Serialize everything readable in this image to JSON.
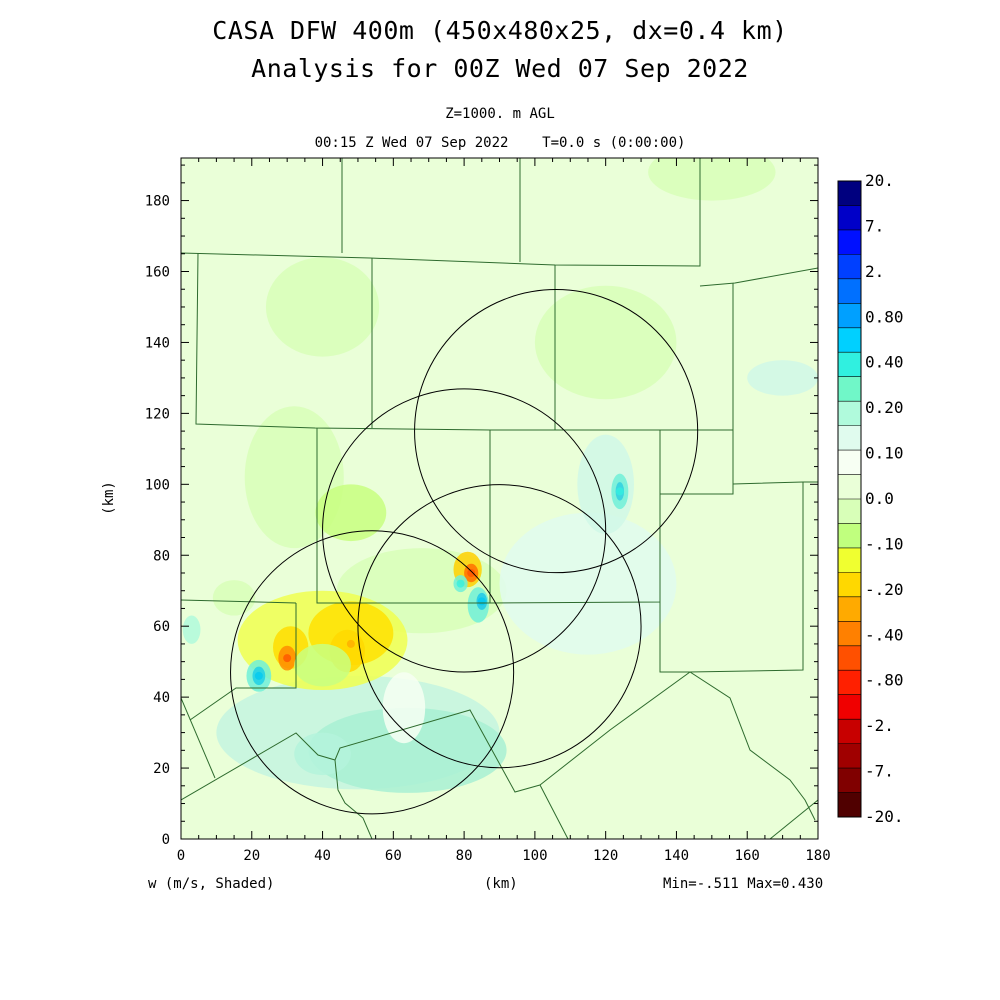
{
  "header": {
    "title_line1": "CASA DFW 400m (450x480x25, dx=0.4 km)",
    "title_line2": "Analysis for 00Z Wed 07 Sep 2022",
    "level_label": "Z=1000. m AGL",
    "time_label": "00:15 Z Wed 07 Sep 2022    T=0.0 s (0:00:00)"
  },
  "footer": {
    "field_label": "w (m/s, Shaded)",
    "x_unit": "(km)",
    "minmax": "Min=-.511 Max=0.430"
  },
  "chart_data": {
    "type": "heatmap",
    "field": "w (m/s, Shaded)",
    "xlabel": "(km)",
    "ylabel": "(km)",
    "xlim": [
      0,
      180
    ],
    "ylim": [
      0,
      192
    ],
    "x_ticks": [
      "0",
      "20",
      "40",
      "60",
      "80",
      "100",
      "120",
      "140",
      "160",
      "180"
    ],
    "y_ticks": [
      "0",
      "20",
      "40",
      "60",
      "80",
      "100",
      "120",
      "140",
      "160",
      "180"
    ],
    "colorbar": {
      "labels": [
        "20.",
        "7.",
        "2.",
        "0.80",
        "0.40",
        "0.20",
        "0.10",
        "0.0",
        "-.10",
        "-.20",
        "-.40",
        "-.80",
        "-2.",
        "-7.",
        "-20."
      ],
      "colors": [
        "#00007f",
        "#0000c8",
        "#0010ff",
        "#0040ff",
        "#0070ff",
        "#00a0ff",
        "#00d0ff",
        "#30f0e0",
        "#70f7c8",
        "#b0fadc",
        "#e0fbee",
        "#f7fff3",
        "#eaffd8",
        "#d8ffb8",
        "#c0ff7e",
        "#f0ff30",
        "#ffd800",
        "#ffaa00",
        "#ff8000",
        "#ff5000",
        "#ff2000",
        "#f00000",
        "#c80000",
        "#a00000",
        "#800000",
        "#500000"
      ]
    },
    "radar_rings_center_km": [
      [
        54,
        47
      ],
      [
        80,
        87
      ],
      [
        90,
        60
      ],
      [
        106,
        115
      ]
    ],
    "radar_ring_radius_km": 40,
    "min": -0.511,
    "max": 0.43,
    "features": [
      {
        "kind": "downdraft",
        "x": 30,
        "y": 51,
        "w": -0.5
      },
      {
        "kind": "downdraft",
        "x": 48,
        "y": 55,
        "w": -0.3
      },
      {
        "kind": "downdraft",
        "x": 82,
        "y": 75,
        "w": -0.5
      },
      {
        "kind": "updraft",
        "x": 22,
        "y": 46,
        "w": 0.4
      },
      {
        "kind": "updraft",
        "x": 85,
        "y": 67,
        "w": 0.4
      },
      {
        "kind": "updraft",
        "x": 79,
        "y": 72,
        "w": 0.3
      },
      {
        "kind": "updraft",
        "x": 124,
        "y": 98,
        "w": 0.3
      }
    ]
  }
}
